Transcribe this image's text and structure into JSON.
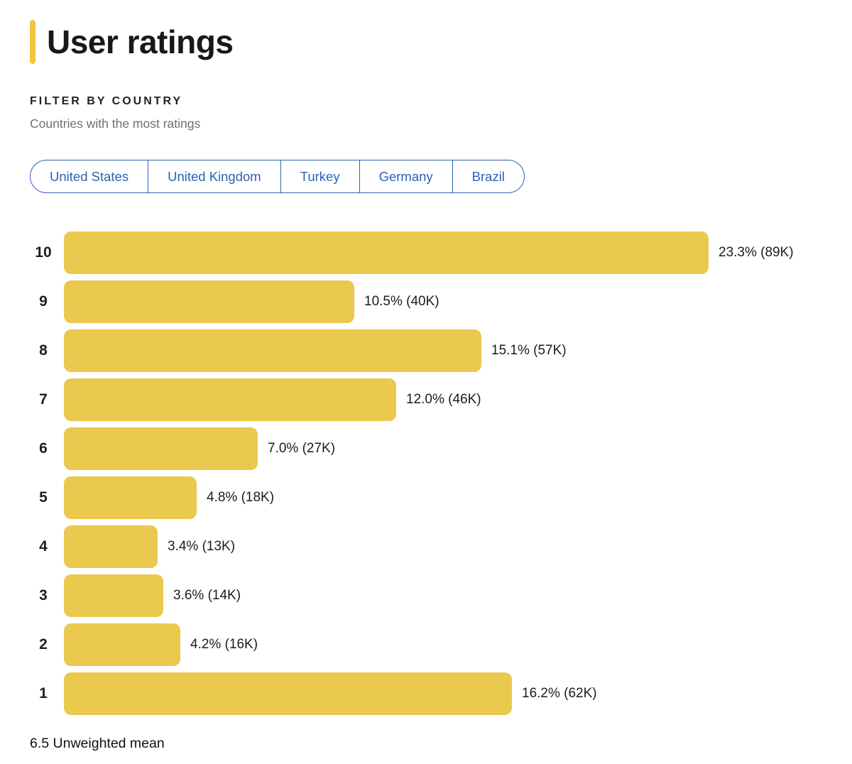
{
  "header": {
    "title": "User ratings"
  },
  "filter": {
    "label": "FILTER BY COUNTRY",
    "sublabel": "Countries with the most ratings",
    "countries": [
      "United States",
      "United Kingdom",
      "Turkey",
      "Germany",
      "Brazil"
    ]
  },
  "chart_data": {
    "type": "bar",
    "orientation": "horizontal",
    "categories": [
      "10",
      "9",
      "8",
      "7",
      "6",
      "5",
      "4",
      "3",
      "2",
      "1"
    ],
    "values": [
      23.3,
      10.5,
      15.1,
      12.0,
      7.0,
      4.8,
      3.4,
      3.6,
      4.2,
      16.2
    ],
    "counts": [
      "89K",
      "40K",
      "57K",
      "46K",
      "27K",
      "18K",
      "13K",
      "14K",
      "16K",
      "62K"
    ],
    "bar_labels": [
      "23.3% (89K)",
      "10.5% (40K)",
      "15.1% (57K)",
      "12.0% (46K)",
      "7.0% (27K)",
      "4.8% (18K)",
      "3.4% (13K)",
      "3.6% (14K)",
      "4.2% (16K)",
      "16.2% (62K)"
    ],
    "xlim": [
      0,
      23.3
    ],
    "grid": false,
    "legend": false,
    "unweighted_mean": "6.5"
  },
  "footer": {
    "mean_value": "6.5",
    "mean_label": "Unweighted mean"
  },
  "colors": {
    "accent_yellow": "#F0C63E",
    "bar_yellow": "#EBC84E",
    "button_blue": "#2E61B2",
    "title_text": "#181818",
    "subtitle_gray": "#6F6F6F",
    "value_text": "#1C1C1C"
  }
}
